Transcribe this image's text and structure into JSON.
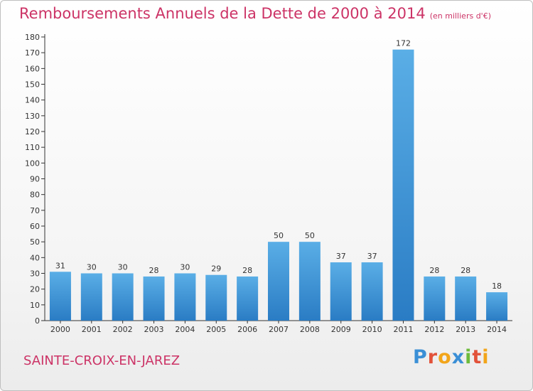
{
  "header": {
    "title": "Remboursements Annuels de la Dette de 2000 à 2014",
    "unit": "(en milliers d'€)"
  },
  "footer": {
    "commune": "SAINTE-CROIX-EN-JAREZ",
    "logo_letters": [
      "P",
      "r",
      "o",
      "x",
      "i",
      "t",
      "i"
    ],
    "logo_colors": [
      "#3a8fd6",
      "#e2523a",
      "#f2a51a",
      "#3a8fd6",
      "#6dbb3b",
      "#e2523a",
      "#f2a51a"
    ]
  },
  "chart_data": {
    "type": "bar",
    "categories": [
      "2000",
      "2001",
      "2002",
      "2003",
      "2004",
      "2005",
      "2006",
      "2007",
      "2008",
      "2009",
      "2010",
      "2011",
      "2012",
      "2013",
      "2014"
    ],
    "values": [
      31,
      30,
      30,
      28,
      30,
      29,
      28,
      50,
      50,
      37,
      37,
      172,
      28,
      28,
      18
    ],
    "ylim": [
      0,
      180
    ],
    "ytick_step": 10,
    "grid": false,
    "bar_color_top": "#5aaee6",
    "bar_color_bottom": "#2a7cc4",
    "axis_color": "#333333"
  }
}
